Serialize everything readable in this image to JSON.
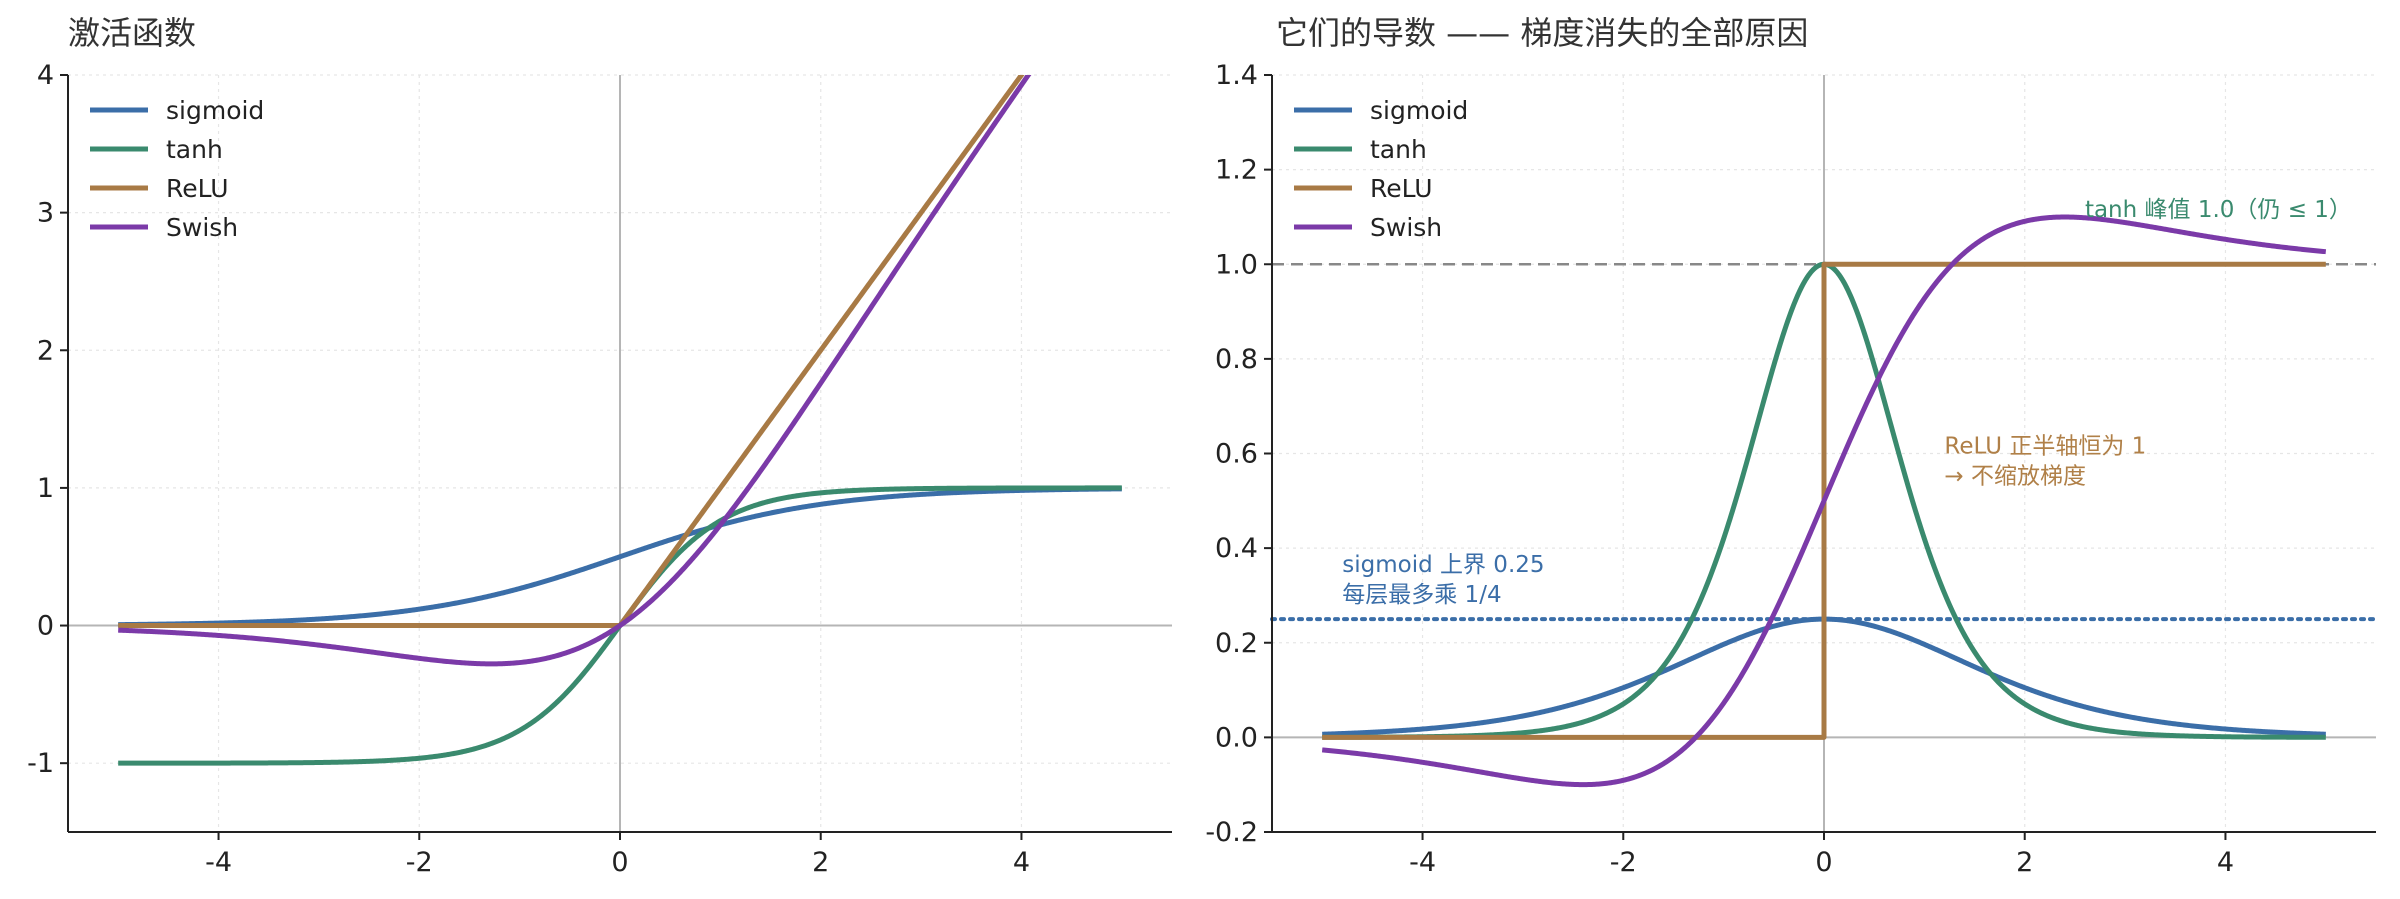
{
  "colors": {
    "sigmoid": "#3b6ea8",
    "tanh": "#3a8a6e",
    "relu": "#a87a45",
    "swish": "#7b3aa8"
  },
  "chart_data": [
    {
      "type": "line",
      "title": "激活函数",
      "xlabel": "",
      "ylabel": "",
      "xlim": [
        -5.5,
        5.5
      ],
      "ylim": [
        -1.5,
        4
      ],
      "xticks": [
        "-4",
        "-2",
        "0",
        "2",
        "4"
      ],
      "yticks": [
        "-1",
        "0",
        "1",
        "2",
        "3",
        "4"
      ],
      "grid": true,
      "legend_position": "top-left",
      "series": [
        {
          "name": "sigmoid",
          "function": "sigmoid",
          "x_range": [
            -5,
            5
          ]
        },
        {
          "name": "tanh",
          "function": "tanh",
          "x_range": [
            -5,
            5
          ]
        },
        {
          "name": "ReLU",
          "function": "relu",
          "x_range": [
            -5,
            5
          ]
        },
        {
          "name": "Swish",
          "function": "swish",
          "x_range": [
            -5,
            5
          ]
        }
      ],
      "reference_lines": []
    },
    {
      "type": "line",
      "title": "它们的导数 —— 梯度消失的全部原因",
      "xlabel": "",
      "ylabel": "",
      "xlim": [
        -5.5,
        5.5
      ],
      "ylim": [
        -0.2,
        1.4
      ],
      "xticks": [
        "-4",
        "-2",
        "0",
        "2",
        "4"
      ],
      "yticks": [
        "-0.2",
        "0.0",
        "0.2",
        "0.4",
        "0.6",
        "0.8",
        "1.0",
        "1.2",
        "1.4"
      ],
      "grid": true,
      "legend_position": "top-left",
      "series": [
        {
          "name": "sigmoid",
          "function": "d_sigmoid",
          "x_range": [
            -5,
            5
          ]
        },
        {
          "name": "tanh",
          "function": "d_tanh",
          "x_range": [
            -5,
            5
          ]
        },
        {
          "name": "ReLU",
          "function": "d_relu",
          "x_range": [
            -5,
            5
          ]
        },
        {
          "name": "Swish",
          "function": "d_swish",
          "x_range": [
            -5,
            5
          ]
        }
      ],
      "reference_lines": [
        {
          "y": 1.0,
          "style": "dashed",
          "color": "#888888"
        },
        {
          "y": 0.25,
          "style": "dotted",
          "color": "#3b6ea8"
        }
      ],
      "annotations": [
        {
          "text": "tanh 峰值 1.0（仍 ≤ 1）",
          "x": 2.6,
          "y": 1.1,
          "color": "#3a8a6e"
        },
        {
          "lines": [
            "ReLU 正半轴恒为 1",
            "→ 不缩放梯度"
          ],
          "x": 1.2,
          "y": 0.6,
          "color": "#b08048"
        },
        {
          "lines": [
            "sigmoid 上界 0.25",
            "每层最多乘 1/4"
          ],
          "x": -4.8,
          "y": 0.35,
          "color": "#3b6ea8"
        }
      ]
    }
  ]
}
